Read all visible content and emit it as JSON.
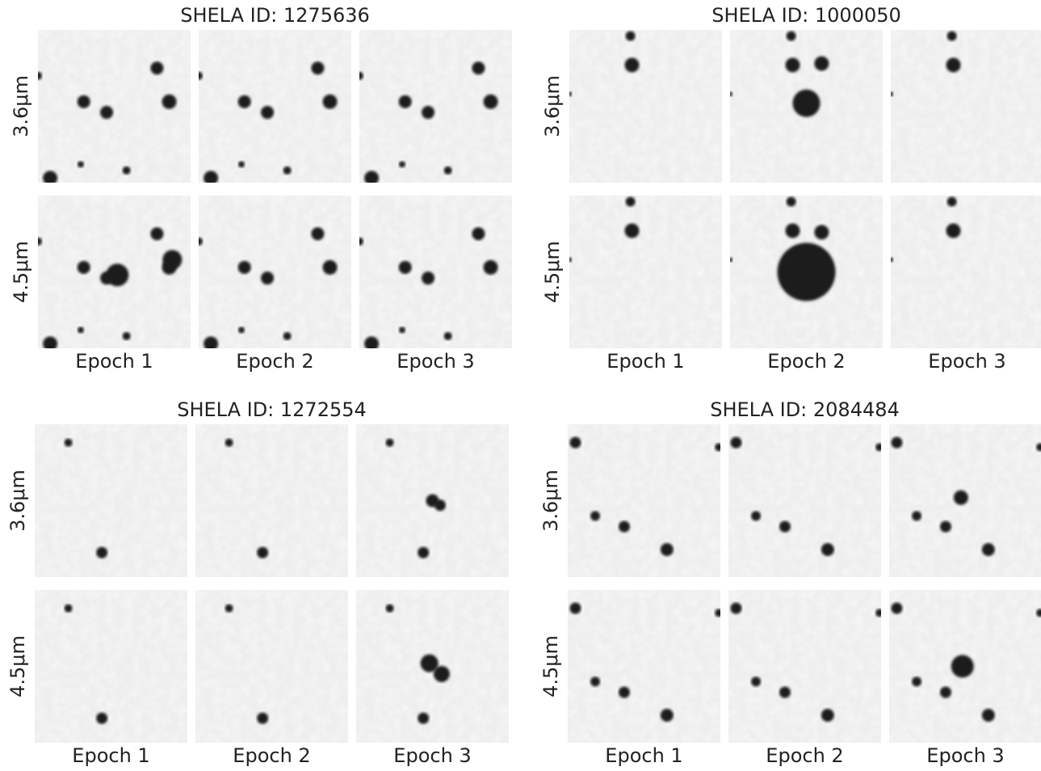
{
  "panels": [
    {
      "title": "SHELA ID: 1275636",
      "rows": [
        "3.6μm",
        "4.5μm"
      ],
      "columns": [
        "Epoch 1",
        "Epoch 2",
        "Epoch 3"
      ]
    },
    {
      "title": "SHELA ID: 1000050",
      "rows": [
        "3.6μm",
        "4.5μm"
      ],
      "columns": [
        "Epoch 1",
        "Epoch 2",
        "Epoch 3"
      ]
    },
    {
      "title": "SHELA ID: 1272554",
      "rows": [
        "3.6μm",
        "4.5μm"
      ],
      "columns": [
        "Epoch 1",
        "Epoch 2",
        "Epoch 3"
      ]
    },
    {
      "title": "SHELA ID: 2084484",
      "rows": [
        "3.6μm",
        "4.5μm"
      ],
      "columns": [
        "Epoch 1",
        "Epoch 2",
        "Epoch 3"
      ]
    }
  ]
}
